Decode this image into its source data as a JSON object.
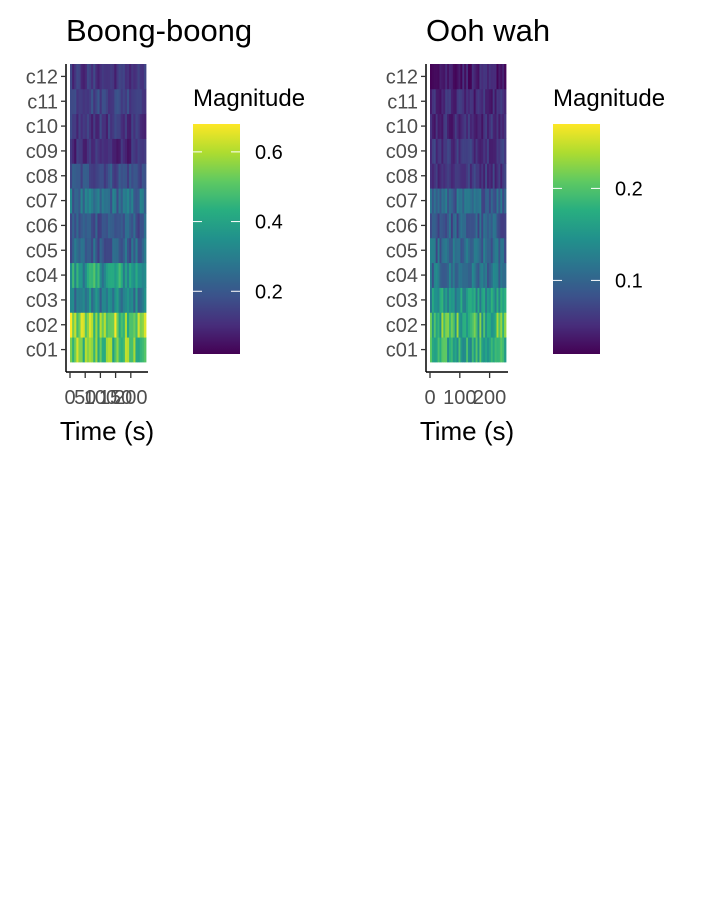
{
  "chart_data": [
    {
      "type": "heatmap",
      "title": "Boong-boong",
      "xlabel": "Time (s)",
      "ylabel": "",
      "x_range": [
        0,
        250
      ],
      "x_ticks": [
        0,
        50,
        100,
        150,
        200
      ],
      "x_tick_labels": [
        "0",
        "50",
        "100",
        "150",
        "200"
      ],
      "y_categories": [
        "c01",
        "c02",
        "c03",
        "c04",
        "c05",
        "c06",
        "c07",
        "c08",
        "c09",
        "c10",
        "c11",
        "c12"
      ],
      "n_frames": 36,
      "row_means": [
        0.5,
        0.55,
        0.3,
        0.38,
        0.22,
        0.2,
        0.25,
        0.18,
        0.1,
        0.12,
        0.16,
        0.12
      ],
      "row_spread": [
        0.14,
        0.14,
        0.09,
        0.12,
        0.08,
        0.07,
        0.08,
        0.06,
        0.05,
        0.05,
        0.05,
        0.05
      ],
      "legend": {
        "title": "Magnitude",
        "min": 0.02,
        "max": 0.68,
        "ticks": [
          0.2,
          0.4,
          0.6
        ],
        "tick_labels": [
          "0.2",
          "0.4",
          "0.6"
        ]
      },
      "colormap": "viridis"
    },
    {
      "type": "heatmap",
      "title": "Ooh wah",
      "xlabel": "Time (s)",
      "ylabel": "",
      "x_range": [
        0,
        255
      ],
      "x_ticks": [
        0,
        100,
        200
      ],
      "x_tick_labels": [
        "0",
        "100",
        "200"
      ],
      "y_categories": [
        "c01",
        "c02",
        "c03",
        "c04",
        "c05",
        "c06",
        "c07",
        "c08",
        "c09",
        "c10",
        "c11",
        "c12"
      ],
      "n_frames": 40,
      "row_means": [
        0.17,
        0.19,
        0.15,
        0.11,
        0.1,
        0.09,
        0.1,
        0.06,
        0.06,
        0.05,
        0.05,
        0.04
      ],
      "row_spread": [
        0.04,
        0.05,
        0.04,
        0.03,
        0.03,
        0.03,
        0.03,
        0.02,
        0.02,
        0.02,
        0.02,
        0.02
      ],
      "legend": {
        "title": "Magnitude",
        "min": 0.02,
        "max": 0.27,
        "ticks": [
          0.1,
          0.2
        ],
        "tick_labels": [
          "0.1",
          "0.2"
        ]
      },
      "colormap": "viridis"
    }
  ]
}
